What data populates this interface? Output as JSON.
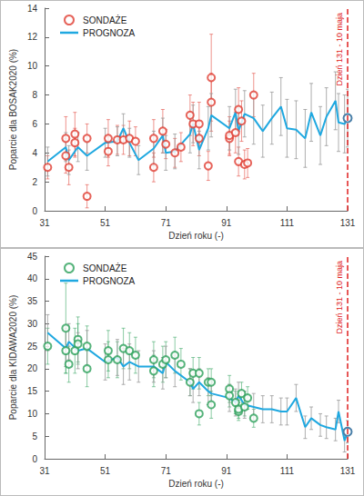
{
  "chart_data": [
    {
      "type": "scatter",
      "xlabel": "Dzień roku (-)",
      "ylabel": "Poparcie dla BOSAK2020 (%)",
      "xlim": [
        31,
        131
      ],
      "xticks": [
        31,
        51,
        71,
        91,
        111,
        131
      ],
      "ylim": [
        0,
        14
      ],
      "yticks": [
        0,
        2,
        4,
        6,
        8,
        10,
        12,
        14
      ],
      "grid": false,
      "legend": "upper left",
      "annotations": [
        {
          "x": 131,
          "text": "Dzień 131 - 10 maja",
          "color": "#e02020",
          "line_style": "dashed"
        }
      ],
      "series": [
        {
          "name": "SONDAŻE",
          "type": "scatter",
          "marker": "circle-open",
          "color": "#e03c31",
          "x": [
            32,
            38,
            38,
            39,
            41,
            41,
            45,
            45,
            52,
            52,
            55,
            57,
            59,
            61,
            67,
            67,
            70,
            71,
            74,
            76,
            79,
            80,
            82,
            82,
            85,
            86,
            86,
            92,
            92,
            94,
            95,
            95,
            96,
            97,
            98,
            100
          ],
          "values": [
            3,
            3.8,
            5,
            3,
            4.7,
            5.3,
            1,
            5,
            4.1,
            5,
            4.9,
            4.9,
            5,
            4.8,
            3,
            5,
            5.5,
            4.6,
            4,
            4.4,
            6.6,
            6,
            5,
            6,
            3.1,
            7.5,
            9.2,
            5,
            5.2,
            5.4,
            3.4,
            7,
            6.2,
            3.2,
            3.3,
            8
          ],
          "errors": [
            0.8,
            1.2,
            1.5,
            1.2,
            1,
            1.5,
            0.8,
            1,
            1,
            1.3,
            1,
            1,
            1.2,
            1,
            1,
            1.3,
            1.5,
            1,
            1,
            1,
            1.4,
            1.5,
            1.2,
            1.5,
            1,
            2,
            3,
            1.2,
            1.3,
            1.4,
            1,
            1.5,
            1.4,
            1,
            1,
            1.5
          ]
        },
        {
          "name": "PROGNOZA",
          "type": "line",
          "marker": "none",
          "color": "#1fa8e0",
          "x": [
            32,
            38,
            39,
            42,
            45,
            51,
            55,
            57,
            59,
            62,
            67,
            70,
            71,
            74,
            79,
            80,
            82,
            85,
            86,
            92,
            94,
            95,
            97,
            100,
            103,
            106,
            109,
            111,
            114,
            117,
            119,
            122,
            124,
            127,
            128,
            130,
            131
          ],
          "values": [
            3.4,
            4.4,
            3.5,
            4.4,
            3.8,
            4.7,
            4.8,
            5.7,
            4.7,
            3.5,
            4.3,
            5.2,
            4.0,
            4.1,
            5.3,
            6.0,
            4.2,
            5.7,
            6.6,
            5.7,
            6.8,
            5.5,
            6.7,
            6.4,
            5.5,
            6.4,
            7.2,
            5.7,
            5.6,
            5.0,
            6.8,
            5.2,
            6.5,
            7.6,
            6.1,
            6.0,
            6.4
          ],
          "errors": [
            1,
            1,
            1,
            1,
            1,
            1,
            1,
            1,
            1,
            1,
            1.2,
            1.2,
            1.2,
            1.2,
            1.3,
            1.3,
            1.3,
            1.5,
            1.5,
            1.5,
            1.6,
            1.6,
            1.6,
            1.8,
            1.8,
            1.8,
            2,
            2,
            2,
            2,
            2,
            2,
            2,
            2,
            2,
            2,
            2
          ]
        }
      ]
    },
    {
      "type": "scatter",
      "xlabel": "Dzień roku (-)",
      "ylabel": "Poparcie dla KIDAWA2020 (%)",
      "xlim": [
        31,
        131
      ],
      "xticks": [
        31,
        51,
        71,
        91,
        111,
        131
      ],
      "ylim": [
        0,
        45
      ],
      "yticks": [
        0,
        5,
        10,
        15,
        20,
        25,
        30,
        35,
        40,
        45
      ],
      "grid": false,
      "legend": "upper left",
      "annotations": [
        {
          "x": 131,
          "text": "Dzień 131 - 10 maja",
          "color": "#e02020",
          "line_style": "dashed"
        }
      ],
      "series": [
        {
          "name": "SONDAŻE",
          "type": "scatter",
          "marker": "circle-open",
          "color": "#2ca05a",
          "x": [
            32,
            38,
            38,
            39,
            41,
            42,
            42,
            45,
            45,
            52,
            52,
            55,
            57,
            59,
            61,
            67,
            67,
            70,
            71,
            74,
            76,
            79,
            80,
            82,
            82,
            85,
            86,
            86,
            92,
            92,
            94,
            95,
            95,
            96,
            97,
            98,
            100
          ],
          "values": [
            25,
            24,
            29,
            21,
            24,
            26.5,
            25.5,
            20,
            25,
            22,
            24,
            22,
            24.5,
            24,
            23,
            22,
            19.5,
            21,
            22,
            23,
            21,
            17,
            19,
            10,
            19,
            17,
            12,
            17,
            15.5,
            14,
            12.5,
            10.5,
            11,
            14.5,
            11.5,
            13.5,
            9
          ],
          "errors": [
            4,
            5,
            10,
            4,
            5,
            5,
            4.5,
            4,
            4.5,
            4,
            4.5,
            4,
            4.5,
            4,
            4,
            4,
            3.5,
            4,
            4,
            4,
            3.5,
            3,
            3.5,
            2.5,
            3.5,
            3,
            3,
            3,
            3,
            2.5,
            2.5,
            2,
            2,
            2.5,
            2,
            2.5,
            2
          ]
        },
        {
          "name": "PROGNOZA",
          "type": "line",
          "marker": "none",
          "color": "#1fa8e0",
          "x": [
            32,
            38,
            39,
            42,
            45,
            51,
            55,
            57,
            59,
            62,
            67,
            70,
            71,
            74,
            79,
            80,
            82,
            85,
            86,
            92,
            94,
            95,
            97,
            100,
            103,
            106,
            109,
            111,
            114,
            117,
            119,
            122,
            124,
            127,
            128,
            130,
            131
          ],
          "values": [
            28,
            24.5,
            26,
            24,
            24.5,
            21.5,
            22.5,
            20.5,
            21.5,
            20.5,
            20.5,
            19,
            21.5,
            19.5,
            17,
            15.5,
            17,
            15,
            14.5,
            13.5,
            12.5,
            14,
            12,
            11.5,
            11,
            11,
            10.5,
            10.5,
            13.5,
            7,
            9,
            7.5,
            7,
            6.5,
            10.5,
            4,
            6
          ],
          "errors": [
            4,
            4,
            4,
            4,
            4,
            4,
            4,
            4,
            4,
            3.5,
            3.5,
            3.5,
            3.5,
            3.5,
            3,
            3,
            3,
            3,
            3,
            3,
            3,
            3,
            3,
            3,
            3,
            3,
            3,
            3,
            3,
            2.5,
            2.5,
            2.5,
            2.5,
            2.5,
            2.5,
            2.5,
            2.5
          ]
        }
      ]
    }
  ]
}
